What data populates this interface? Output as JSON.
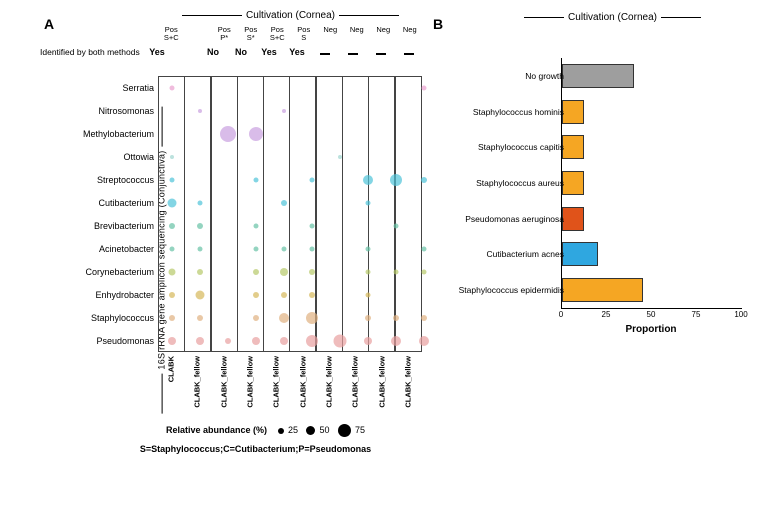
{
  "panelA": {
    "letter": "A",
    "side_label": "16S rRNA gene amplicon sequencing (Conjunctiva)",
    "top_label": "Cultivation (Cornea)",
    "columns": [
      {
        "cult": "Pos\nS+C",
        "id": "Yes",
        "x": "CLABK"
      },
      {
        "cult": "",
        "id": "",
        "x": "CLABK_fellow"
      },
      {
        "cult": "Pos\nP*",
        "id": "No",
        "x": "CLABK_fellow"
      },
      {
        "cult": "Pos\nS*",
        "id": "No",
        "x": "CLABK_fellow"
      },
      {
        "cult": "Pos\nS+C",
        "id": "Yes",
        "x": "CLABK_fellow"
      },
      {
        "cult": "Pos\nS",
        "id": "Yes",
        "x": "CLABK_fellow"
      },
      {
        "cult": "Neg",
        "id": "—",
        "x": "CLABK_fellow"
      },
      {
        "cult": "Neg",
        "id": "—",
        "x": "CLABK_fellow"
      },
      {
        "cult": "Neg",
        "id": "—",
        "x": "CLABK_fellow"
      },
      {
        "cult": "Neg",
        "id": "—",
        "x": "CLABK_fellow"
      }
    ],
    "identified_label": "Identified by both methods",
    "rows": [
      "Serratia",
      "Nitrosomonas",
      "Methylobacterium",
      "Ottowia",
      "Streptococcus",
      "Cutibacterium",
      "Brevibacterium",
      "Acinetobacter",
      "Corynebacterium",
      "Enhydrobacter",
      "Staphylococcus",
      "Pseudomonas"
    ],
    "row_colors": [
      "#e99fcf",
      "#c99fe0",
      "#c99fe0",
      "#a0d6d0",
      "#4fc3d9",
      "#4fc3d9",
      "#66c2a5",
      "#66c2a5",
      "#b7c96a",
      "#d6b85a",
      "#e0b080",
      "#e89fa0"
    ],
    "bubbles": [
      {
        "c": 0,
        "r": 0,
        "s": 5
      },
      {
        "c": 9,
        "r": 0,
        "s": 5
      },
      {
        "c": 1,
        "r": 1,
        "s": 4
      },
      {
        "c": 4,
        "r": 1,
        "s": 4
      },
      {
        "c": 2,
        "r": 2,
        "s": 16
      },
      {
        "c": 3,
        "r": 2,
        "s": 14
      },
      {
        "c": 0,
        "r": 3,
        "s": 4
      },
      {
        "c": 6,
        "r": 3,
        "s": 4
      },
      {
        "c": 0,
        "r": 4,
        "s": 5
      },
      {
        "c": 3,
        "r": 4,
        "s": 5
      },
      {
        "c": 5,
        "r": 4,
        "s": 5
      },
      {
        "c": 7,
        "r": 4,
        "s": 10
      },
      {
        "c": 8,
        "r": 4,
        "s": 12
      },
      {
        "c": 9,
        "r": 4,
        "s": 6
      },
      {
        "c": 0,
        "r": 5,
        "s": 9
      },
      {
        "c": 1,
        "r": 5,
        "s": 5
      },
      {
        "c": 4,
        "r": 5,
        "s": 6
      },
      {
        "c": 7,
        "r": 5,
        "s": 5
      },
      {
        "c": 0,
        "r": 6,
        "s": 6
      },
      {
        "c": 1,
        "r": 6,
        "s": 6
      },
      {
        "c": 3,
        "r": 6,
        "s": 5
      },
      {
        "c": 5,
        "r": 6,
        "s": 5
      },
      {
        "c": 8,
        "r": 6,
        "s": 5
      },
      {
        "c": 0,
        "r": 7,
        "s": 5
      },
      {
        "c": 1,
        "r": 7,
        "s": 5
      },
      {
        "c": 3,
        "r": 7,
        "s": 5
      },
      {
        "c": 4,
        "r": 7,
        "s": 5
      },
      {
        "c": 5,
        "r": 7,
        "s": 5
      },
      {
        "c": 7,
        "r": 7,
        "s": 5
      },
      {
        "c": 9,
        "r": 7,
        "s": 5
      },
      {
        "c": 0,
        "r": 8,
        "s": 7
      },
      {
        "c": 1,
        "r": 8,
        "s": 6
      },
      {
        "c": 3,
        "r": 8,
        "s": 6
      },
      {
        "c": 4,
        "r": 8,
        "s": 8
      },
      {
        "c": 5,
        "r": 8,
        "s": 6
      },
      {
        "c": 7,
        "r": 8,
        "s": 5
      },
      {
        "c": 8,
        "r": 8,
        "s": 5
      },
      {
        "c": 9,
        "r": 8,
        "s": 5
      },
      {
        "c": 0,
        "r": 9,
        "s": 6
      },
      {
        "c": 1,
        "r": 9,
        "s": 9
      },
      {
        "c": 3,
        "r": 9,
        "s": 6
      },
      {
        "c": 4,
        "r": 9,
        "s": 6
      },
      {
        "c": 5,
        "r": 9,
        "s": 6
      },
      {
        "c": 7,
        "r": 9,
        "s": 5
      },
      {
        "c": 0,
        "r": 10,
        "s": 6
      },
      {
        "c": 1,
        "r": 10,
        "s": 6
      },
      {
        "c": 3,
        "r": 10,
        "s": 6
      },
      {
        "c": 4,
        "r": 10,
        "s": 10
      },
      {
        "c": 5,
        "r": 10,
        "s": 12
      },
      {
        "c": 7,
        "r": 10,
        "s": 6
      },
      {
        "c": 8,
        "r": 10,
        "s": 6
      },
      {
        "c": 9,
        "r": 10,
        "s": 6
      },
      {
        "c": 0,
        "r": 11,
        "s": 8
      },
      {
        "c": 1,
        "r": 11,
        "s": 8
      },
      {
        "c": 2,
        "r": 11,
        "s": 6
      },
      {
        "c": 3,
        "r": 11,
        "s": 8
      },
      {
        "c": 4,
        "r": 11,
        "s": 8
      },
      {
        "c": 5,
        "r": 11,
        "s": 12
      },
      {
        "c": 6,
        "r": 11,
        "s": 13
      },
      {
        "c": 7,
        "r": 11,
        "s": 8
      },
      {
        "c": 8,
        "r": 11,
        "s": 10
      },
      {
        "c": 9,
        "r": 11,
        "s": 10
      }
    ],
    "legend_label": "Relative abundance (%)",
    "legend_sizes": [
      {
        "label": "25",
        "d": 6
      },
      {
        "label": "50",
        "d": 9
      },
      {
        "label": "75",
        "d": 13
      }
    ],
    "footnote": "S=Staphylococcus;C=Cutibacterium;P=Pseudomonas"
  },
  "panelB": {
    "letter": "B",
    "top_label": "Cultivation (Cornea)",
    "ymax": 100,
    "xticks": [
      0,
      25,
      50,
      75,
      100
    ],
    "xlabel": "Proportion",
    "bars": [
      {
        "label": "No growth",
        "val": 40,
        "color": "#9e9e9e"
      },
      {
        "label": "Staphylococcus hominis",
        "val": 12,
        "color": "#f5a623"
      },
      {
        "label": "Staphylococcus capitis",
        "val": 12,
        "color": "#f5a623"
      },
      {
        "label": "Staphylococcus aureus",
        "val": 12,
        "color": "#f5a623"
      },
      {
        "label": "Pseudomonas aeruginosa",
        "val": 12,
        "color": "#e0531a"
      },
      {
        "label": "Cutibacterium acnes",
        "val": 20,
        "color": "#2fa7e0"
      },
      {
        "label": "Staphylococcus epidermidis",
        "val": 45,
        "color": "#f5a623"
      }
    ]
  }
}
